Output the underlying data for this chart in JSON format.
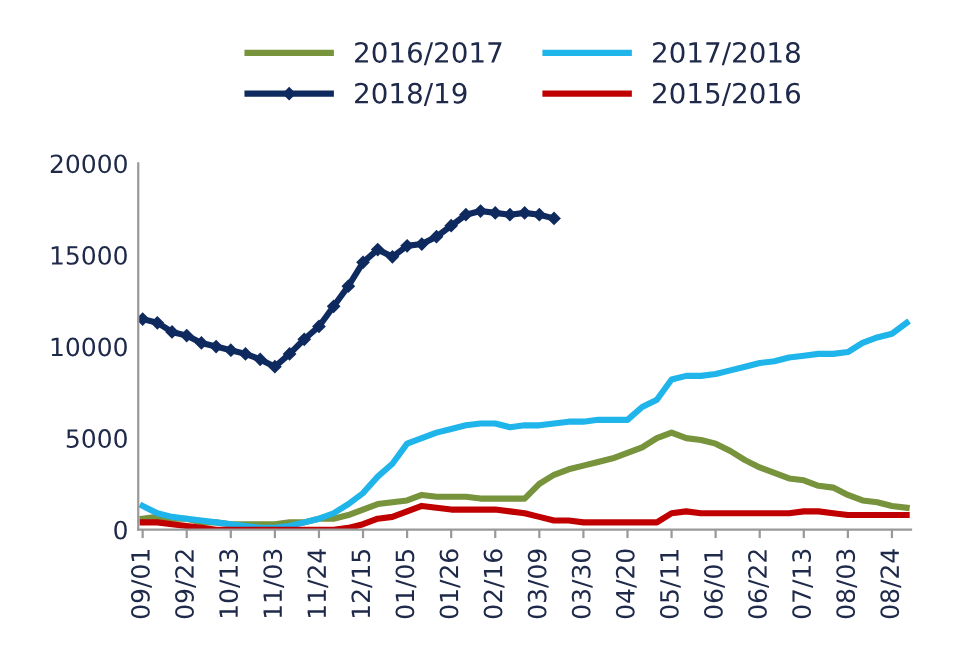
{
  "chart_data": {
    "type": "line",
    "categories": [
      "09/01",
      null,
      null,
      "09/22",
      null,
      null,
      "10/13",
      null,
      null,
      "11/03",
      null,
      null,
      "11/24",
      null,
      null,
      "12/15",
      null,
      null,
      "01/05",
      null,
      null,
      "01/26",
      null,
      null,
      "02/16",
      null,
      null,
      "03/09",
      null,
      null,
      "03/30",
      null,
      null,
      "04/20",
      null,
      null,
      "05/11",
      null,
      null,
      "06/01",
      null,
      null,
      "06/22",
      null,
      null,
      "07/13",
      null,
      null,
      "08/03",
      null,
      null,
      "08/24",
      null
    ],
    "series": [
      {
        "name": "2016/2017",
        "color": "#77933c",
        "marker": "none",
        "values": [
          600,
          700,
          600,
          600,
          400,
          400,
          300,
          300,
          300,
          300,
          400,
          400,
          600,
          600,
          800,
          1100,
          1400,
          1500,
          1600,
          1900,
          1800,
          1800,
          1800,
          1700,
          1700,
          1700,
          1700,
          2500,
          3000,
          3300,
          3500,
          3700,
          3900,
          4200,
          4500,
          5000,
          5300,
          5000,
          4900,
          4700,
          4300,
          3800,
          3400,
          3100,
          2800,
          2700,
          2400,
          2300,
          1900,
          1600,
          1500,
          1300,
          1200
        ]
      },
      {
        "name": "2017/2018",
        "color": "#1fb5ea",
        "marker": "none",
        "values": [
          1300,
          900,
          700,
          600,
          500,
          400,
          300,
          200,
          100,
          100,
          200,
          400,
          600,
          900,
          1400,
          2000,
          2900,
          3600,
          4700,
          5000,
          5300,
          5500,
          5700,
          5800,
          5800,
          5600,
          5700,
          5700,
          5800,
          5900,
          5900,
          6000,
          6000,
          6000,
          6700,
          7100,
          8200,
          8400,
          8400,
          8500,
          8700,
          8900,
          9100,
          9200,
          9400,
          9500,
          9600,
          9600,
          9700,
          10200,
          10500,
          10700,
          11300
        ]
      },
      {
        "name": "2018/19",
        "color": "#0e2a5e",
        "marker": "diamond",
        "values": [
          11500,
          11300,
          10800,
          10600,
          10200,
          10000,
          9800,
          9600,
          9300,
          8900,
          9600,
          10400,
          11100,
          12200,
          13300,
          14600,
          15300,
          14900,
          15500,
          15600,
          16000,
          16600,
          17200,
          17400,
          17300,
          17200,
          17300,
          17200,
          17000,
          null,
          null,
          null,
          null,
          null,
          null,
          null,
          null,
          null,
          null,
          null,
          null,
          null,
          null,
          null,
          null,
          null,
          null,
          null,
          null,
          null,
          null,
          null,
          null
        ]
      },
      {
        "name": "2015/2016",
        "color": "#c00000",
        "marker": "none",
        "values": [
          400,
          400,
          300,
          200,
          100,
          0,
          0,
          0,
          0,
          0,
          0,
          0,
          0,
          0,
          100,
          300,
          600,
          700,
          1000,
          1300,
          1200,
          1100,
          1100,
          1100,
          1100,
          1000,
          900,
          700,
          500,
          500,
          400,
          400,
          400,
          400,
          400,
          400,
          900,
          1000,
          900,
          900,
          900,
          900,
          900,
          900,
          900,
          1000,
          1000,
          900,
          800,
          800,
          800,
          800,
          800
        ]
      }
    ],
    "ylim": [
      0,
      20000
    ],
    "yticks": [
      0,
      5000,
      10000,
      15000,
      20000
    ],
    "grid": false,
    "legend": "top",
    "line_style": "solid"
  }
}
